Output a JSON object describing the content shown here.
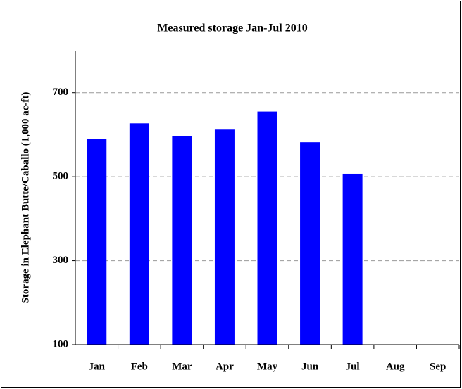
{
  "chart_data": {
    "type": "bar",
    "title": "Measured storage Jan-Jul 2010",
    "y_label": "Storage in Elephant Butte/Caballo (1,000 ac-ft)",
    "categories": [
      "Jan",
      "Feb",
      "Mar",
      "Apr",
      "May",
      "Jun",
      "Jul",
      "Aug",
      "Sep"
    ],
    "values": [
      590,
      627,
      597,
      612,
      655,
      582,
      507,
      null,
      null
    ],
    "color": "#0000ff",
    "ylim": [
      100,
      800
    ],
    "yticks": [
      100,
      300,
      500,
      700
    ],
    "grid": true
  }
}
